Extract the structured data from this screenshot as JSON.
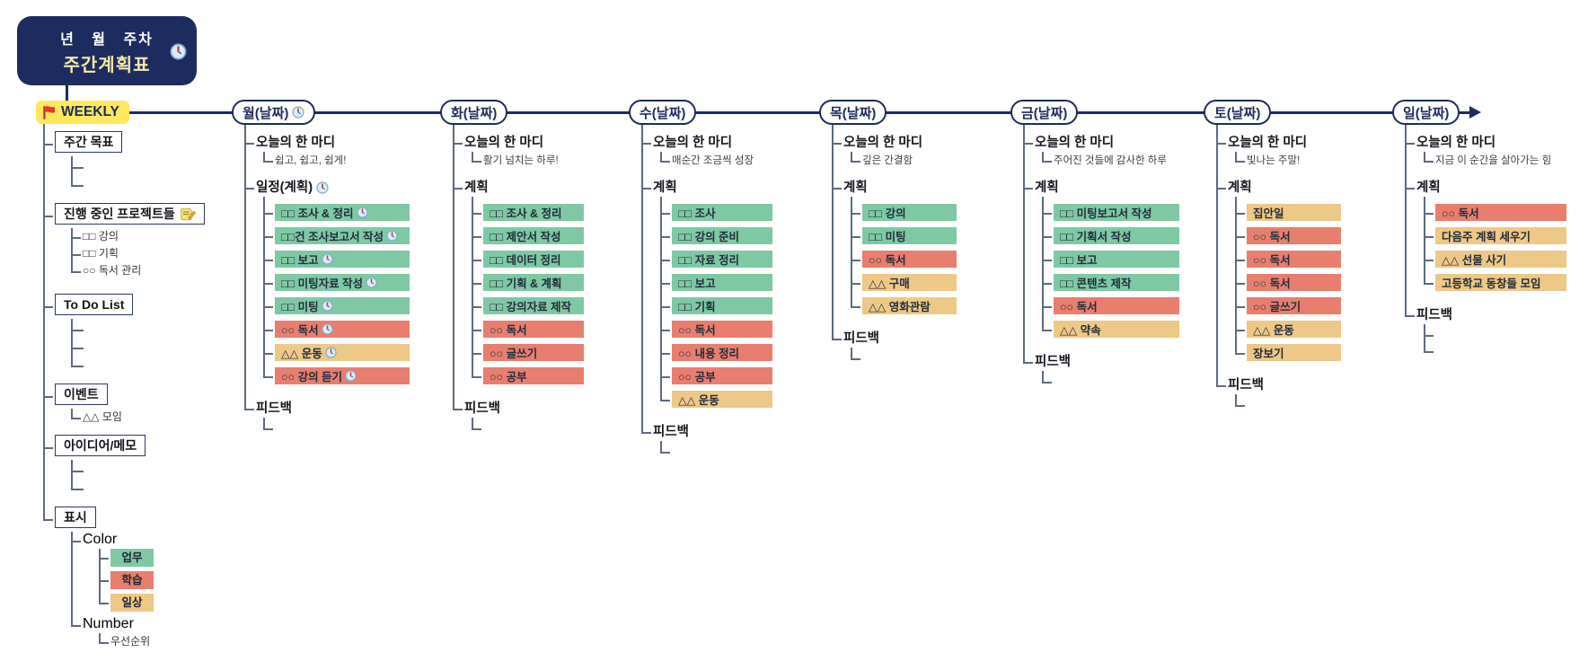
{
  "colors": {
    "green": "#7ec9a4",
    "red": "#e87e6d",
    "orange": "#eec886",
    "navy": "#1c2c5e",
    "line": "#5d6b80",
    "highlight": "#ffe75e",
    "root_title_yellow": "#f6e8a8"
  },
  "root": {
    "subtitle": "년 월 주차",
    "title": "주간계획표",
    "icon": "clock-icon"
  },
  "weekly": {
    "label": "WEEKLY",
    "icon": "flag-icon"
  },
  "sidebar": {
    "groups": [
      {
        "key": "goals",
        "label": "주간 목표",
        "children": [
          {
            "empty": true
          },
          {
            "empty": true
          }
        ]
      },
      {
        "key": "projects",
        "label": "진행 중인 프로젝트들",
        "icon": "memo-icon",
        "children": [
          {
            "text": "□□ 강의"
          },
          {
            "text": "□□ 기획"
          },
          {
            "text": "○○ 독서 관리"
          }
        ]
      },
      {
        "key": "todo",
        "label": "To Do List",
        "children": [
          {
            "empty": true
          },
          {
            "empty": true
          },
          {
            "empty": true
          }
        ]
      },
      {
        "key": "events",
        "label": "이벤트",
        "children": [
          {
            "text": "△△ 모임"
          }
        ]
      },
      {
        "key": "ideas",
        "label": "아이디어/메모",
        "children": [
          {
            "empty": true
          },
          {
            "empty": true
          }
        ]
      },
      {
        "key": "marks",
        "label": "표시",
        "children": [
          {
            "text": "Color",
            "children": [
              {
                "chip": "업무",
                "color": "green",
                "key": "work"
              },
              {
                "chip": "학습",
                "color": "red",
                "key": "study"
              },
              {
                "chip": "일상",
                "color": "orange",
                "key": "daily"
              }
            ]
          },
          {
            "text": "Number",
            "children": [
              {
                "text": "우선순위"
              }
            ]
          }
        ]
      }
    ]
  },
  "days": [
    {
      "key": "mon",
      "title": "월(날짜)",
      "clock": true,
      "quote_label": "오늘의 한 마디",
      "quote": "쉽고, 쉽고, 쉽게!",
      "plan_label": "일정(계획)",
      "plan_clock": true,
      "items": [
        {
          "text": "□□ 조사 & 정리",
          "color": "green",
          "clock": true
        },
        {
          "text": "□□건 조사보고서 작성",
          "color": "green",
          "clock": true
        },
        {
          "text": "□□ 보고",
          "color": "green",
          "clock": true
        },
        {
          "text": "□□ 미팅자료 작성",
          "color": "green",
          "clock": true
        },
        {
          "text": "□□ 미팅",
          "color": "green",
          "clock": true
        },
        {
          "text": "○○ 독서",
          "color": "red",
          "clock": true
        },
        {
          "text": "△△ 운동",
          "color": "orange",
          "clock": true
        },
        {
          "text": "○○ 강의 듣기",
          "color": "red",
          "clock": true
        }
      ],
      "feedback_label": "피드백",
      "feedback_stubs": 1
    },
    {
      "key": "tue",
      "title": "화(날짜)",
      "clock": false,
      "quote_label": "오늘의 한 마디",
      "quote": "활기 넘치는 하루!",
      "plan_label": "계획",
      "plan_clock": false,
      "items": [
        {
          "text": "□□ 조사 & 정리",
          "color": "green"
        },
        {
          "text": "□□ 제안서 작성",
          "color": "green"
        },
        {
          "text": "□□ 데이터 정리",
          "color": "green"
        },
        {
          "text": "□□ 기획 & 계획",
          "color": "green"
        },
        {
          "text": "□□ 강의자료 제작",
          "color": "green"
        },
        {
          "text": "○○ 독서",
          "color": "red"
        },
        {
          "text": "○○ 글쓰기",
          "color": "red"
        },
        {
          "text": "○○ 공부",
          "color": "red"
        }
      ],
      "feedback_label": "피드백",
      "feedback_stubs": 1
    },
    {
      "key": "wed",
      "title": "수(날짜)",
      "clock": false,
      "quote_label": "오늘의 한 마디",
      "quote": "매순간 조금씩 성장",
      "plan_label": "계획",
      "plan_clock": false,
      "items": [
        {
          "text": "□□ 조사",
          "color": "green"
        },
        {
          "text": "□□ 강의 준비",
          "color": "green"
        },
        {
          "text": "□□ 자료 정리",
          "color": "green"
        },
        {
          "text": "□□ 보고",
          "color": "green"
        },
        {
          "text": "□□ 기획",
          "color": "green"
        },
        {
          "text": "○○ 독서",
          "color": "red"
        },
        {
          "text": "○○ 내용 정리",
          "color": "red"
        },
        {
          "text": "○○ 공부",
          "color": "red"
        },
        {
          "text": "△△ 운동",
          "color": "orange"
        }
      ],
      "feedback_label": "피드백",
      "feedback_stubs": 1
    },
    {
      "key": "thu",
      "title": "목(날짜)",
      "clock": false,
      "quote_label": "오늘의 한 마디",
      "quote": "깊은 간결함",
      "plan_label": "계획",
      "plan_clock": false,
      "items": [
        {
          "text": "□□ 강의",
          "color": "green"
        },
        {
          "text": "□□ 미팅",
          "color": "green"
        },
        {
          "text": "○○ 독서",
          "color": "red"
        },
        {
          "text": "△△ 구매",
          "color": "orange"
        },
        {
          "text": "△△ 영화관람",
          "color": "orange"
        }
      ],
      "feedback_label": "피드백",
      "feedback_stubs": 1
    },
    {
      "key": "fri",
      "title": "금(날짜)",
      "clock": false,
      "quote_label": "오늘의 한 마디",
      "quote": "주어진 것들에 감사한 하루",
      "plan_label": "계획",
      "plan_clock": false,
      "items": [
        {
          "text": "□□ 미팅보고서 작성",
          "color": "green"
        },
        {
          "text": "□□ 기획서 작성",
          "color": "green"
        },
        {
          "text": "□□ 보고",
          "color": "green"
        },
        {
          "text": "□□ 콘텐츠 제작",
          "color": "green"
        },
        {
          "text": "○○ 독서",
          "color": "red"
        },
        {
          "text": "△△ 약속",
          "color": "orange"
        }
      ],
      "feedback_label": "피드백",
      "feedback_stubs": 1
    },
    {
      "key": "sat",
      "title": "토(날짜)",
      "clock": false,
      "quote_label": "오늘의 한 마디",
      "quote": "빛나는 주말!",
      "plan_label": "계획",
      "plan_clock": false,
      "items": [
        {
          "text": "집안일",
          "color": "orange"
        },
        {
          "text": "○○ 독서",
          "color": "red"
        },
        {
          "text": "○○ 독서",
          "color": "red"
        },
        {
          "text": "○○ 독서",
          "color": "red"
        },
        {
          "text": "○○ 글쓰기",
          "color": "red"
        },
        {
          "text": "△△ 운동",
          "color": "orange"
        },
        {
          "text": "장보기",
          "color": "orange"
        }
      ],
      "feedback_label": "피드백",
      "feedback_stubs": 1
    },
    {
      "key": "sun",
      "title": "일(날짜)",
      "clock": false,
      "quote_label": "오늘의 한 마디",
      "quote": "지금 이 순간을 살아가는 힘",
      "plan_label": "계획",
      "plan_clock": false,
      "items": [
        {
          "text": "○○ 독서",
          "color": "red"
        },
        {
          "text": "다음주 계획 세우기",
          "color": "orange"
        },
        {
          "text": "△△ 선물 사기",
          "color": "orange"
        },
        {
          "text": "고등학교 동창들 모임",
          "color": "orange"
        }
      ],
      "feedback_label": "피드백",
      "feedback_stubs": 2
    }
  ]
}
